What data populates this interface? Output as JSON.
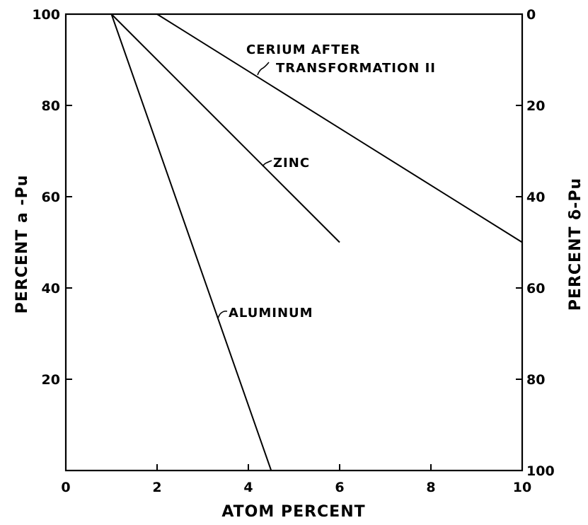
{
  "chart_data": {
    "type": "line",
    "xlabel": "ATOM PERCENT",
    "ylabel": "PERCENT a -Pu",
    "y2label": "PERCENT δ-Pu",
    "xlim": [
      0,
      10
    ],
    "ylim": [
      0,
      100
    ],
    "y2lim": [
      100,
      0
    ],
    "x_ticks": [
      0,
      2,
      4,
      6,
      8,
      10
    ],
    "x_tick_labels": [
      "0",
      "2",
      "4",
      "6",
      "8",
      "10"
    ],
    "y_ticks": [
      20,
      40,
      60,
      80,
      100
    ],
    "y_tick_labels": [
      "20",
      "40",
      "60",
      "80",
      "100"
    ],
    "y2_ticks": [
      100,
      80,
      60,
      40,
      20,
      0
    ],
    "y2_tick_labels": [
      "0",
      "20",
      "40",
      "60",
      "80",
      "100"
    ],
    "grid": false,
    "series": [
      {
        "name": "ALUMINUM",
        "x": [
          1.0,
          4.5
        ],
        "y": [
          100,
          0
        ]
      },
      {
        "name": "ZINC",
        "x": [
          1.0,
          6.0
        ],
        "y": [
          100,
          50
        ]
      },
      {
        "name": "CERIUM AFTER TRANSFORMATION II",
        "label_lines": [
          "CERIUM AFTER",
          "TRANSFORMATION II"
        ],
        "x": [
          2.0,
          10.0
        ],
        "y": [
          100,
          50
        ]
      }
    ]
  }
}
